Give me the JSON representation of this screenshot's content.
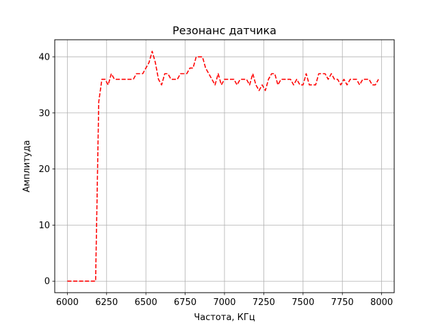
{
  "chart_data": {
    "type": "line",
    "title": "Резонанс датчика",
    "xlabel": "Частота, КГц",
    "ylabel": "Амплитуда",
    "xlim": [
      5920,
      8080
    ],
    "ylim": [
      -2.05,
      43.05
    ],
    "xticks": [
      6000,
      6250,
      6500,
      6750,
      7000,
      7250,
      7500,
      7750,
      8000
    ],
    "yticks": [
      0,
      10,
      20,
      30,
      40
    ],
    "grid": true,
    "series": [
      {
        "color": "#ff0000",
        "style": "dashed",
        "x": [
          6000,
          6020,
          6040,
          6060,
          6080,
          6100,
          6120,
          6140,
          6160,
          6180,
          6200,
          6220,
          6240,
          6260,
          6280,
          6300,
          6320,
          6340,
          6360,
          6380,
          6400,
          6420,
          6440,
          6460,
          6480,
          6500,
          6520,
          6540,
          6560,
          6580,
          6600,
          6620,
          6640,
          6660,
          6680,
          6700,
          6720,
          6740,
          6760,
          6780,
          6800,
          6820,
          6840,
          6860,
          6880,
          6900,
          6920,
          6940,
          6960,
          6980,
          7000,
          7020,
          7040,
          7060,
          7080,
          7100,
          7120,
          7140,
          7160,
          7180,
          7200,
          7220,
          7240,
          7260,
          7280,
          7300,
          7320,
          7340,
          7360,
          7380,
          7400,
          7420,
          7440,
          7460,
          7480,
          7500,
          7520,
          7540,
          7560,
          7580,
          7600,
          7620,
          7640,
          7660,
          7680,
          7700,
          7720,
          7740,
          7760,
          7780,
          7800,
          7820,
          7840,
          7860,
          7880,
          7900,
          7920,
          7940,
          7960,
          7980
        ],
        "y": [
          0,
          0,
          0,
          0,
          0,
          0,
          0,
          0,
          0,
          0,
          32,
          36,
          36,
          35,
          37,
          36,
          36,
          36,
          36,
          36,
          36,
          36,
          37,
          37,
          37,
          38,
          39,
          41,
          39,
          36,
          35,
          37,
          37,
          36,
          36,
          36,
          37,
          37,
          37,
          38,
          38,
          40,
          40,
          40,
          38,
          37,
          36,
          35,
          37,
          35,
          36,
          36,
          36,
          36,
          35,
          36,
          36,
          36,
          35,
          37,
          35,
          34,
          35,
          34,
          36,
          37,
          37,
          35,
          36,
          36,
          36,
          36,
          35,
          36,
          35,
          35,
          37,
          35,
          35,
          35,
          37,
          37,
          37,
          36,
          37,
          36,
          36,
          35,
          36,
          35,
          36,
          36,
          36,
          35,
          36,
          36,
          36,
          35,
          35,
          36
        ]
      }
    ]
  }
}
